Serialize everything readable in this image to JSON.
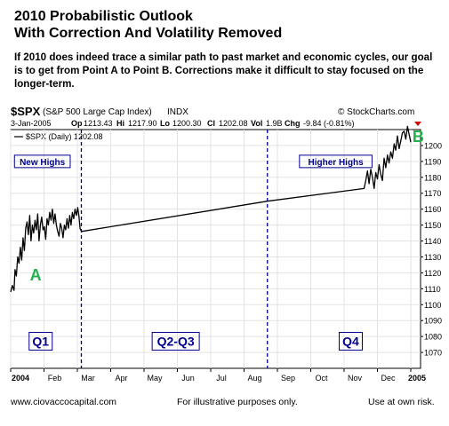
{
  "header": {
    "title_line1": "2010 Probabilistic Outlook",
    "title_line2": "With Correction And Volatility Removed",
    "subtitle": "If 2010 does indeed trace a similar path to past market and economic cycles, our goal is to get from Point A to Point B.   Corrections make it difficult to stay focused on the longer-term."
  },
  "chart_header": {
    "symbol": "$SPX",
    "name": "(S&P 500 Large Cap Index)",
    "exchange": "INDX",
    "credit": "© StockCharts.com",
    "date": "3-Jan-2005",
    "op_label": "Op",
    "op": "1213.43",
    "hi_label": "Hi",
    "hi": "1217.90",
    "lo_label": "Lo",
    "lo": "1200.30",
    "cl_label": "Cl",
    "cl": "1202.08",
    "vol_label": "Vol",
    "vol": "1.9B",
    "chg_label": "Chg",
    "chg": "-9.84 (-0.81%)",
    "legend": "$SPX (Daily) 1202.08"
  },
  "footer": {
    "left": "www.ciovaccocapital.com",
    "center": "For illustrative purposes only.",
    "right": "Use at own risk."
  },
  "colors": {
    "label_blue": "#00008B",
    "point_green": "#22B14C",
    "divider_blue": "#00008B",
    "change_red": "#CC0000",
    "price_line": "#000000"
  },
  "chart_data": {
    "type": "line",
    "title": "$SPX (S&P 500 Large Cap Index) INDX",
    "ylim": [
      1060,
      1210
    ],
    "yticks": [
      1070,
      1080,
      1090,
      1100,
      1110,
      1120,
      1130,
      1140,
      1150,
      1160,
      1170,
      1180,
      1190,
      1200
    ],
    "x_ticks": [
      {
        "label": "2004",
        "pos": 0.0,
        "bold": true
      },
      {
        "label": "Feb",
        "pos": 1.0
      },
      {
        "label": "Mar",
        "pos": 2.0
      },
      {
        "label": "Apr",
        "pos": 3.0
      },
      {
        "label": "May",
        "pos": 4.0
      },
      {
        "label": "Jun",
        "pos": 5.0
      },
      {
        "label": "Jul",
        "pos": 6.0
      },
      {
        "label": "Aug",
        "pos": 7.0
      },
      {
        "label": "Sep",
        "pos": 8.0
      },
      {
        "label": "Oct",
        "pos": 9.0
      },
      {
        "label": "Nov",
        "pos": 10.0
      },
      {
        "label": "Dec",
        "pos": 11.0
      },
      {
        "label": "2005",
        "pos": 12.0,
        "bold": true
      }
    ],
    "xlim": [
      0,
      12.0
    ],
    "series": [
      {
        "x": [
          0.0,
          0.05,
          0.1,
          0.13,
          0.17,
          0.21,
          0.25,
          0.29,
          0.33,
          0.37,
          0.41,
          0.45,
          0.49,
          0.53,
          0.57,
          0.61,
          0.65,
          0.69,
          0.73,
          0.77,
          0.81,
          0.85,
          0.89,
          0.93,
          0.97,
          1.01,
          1.05,
          1.09,
          1.13,
          1.17,
          1.21,
          1.25,
          1.29,
          1.33,
          1.37,
          1.41,
          1.45,
          1.49,
          1.53,
          1.57,
          1.61,
          1.65,
          1.69,
          1.73,
          1.77,
          1.81,
          1.85,
          1.89,
          1.93,
          1.97,
          2.01,
          2.05,
          2.08,
          2.12,
          7.7,
          10.6,
          10.65,
          10.7,
          10.75,
          10.8,
          10.85,
          10.9,
          10.95,
          11.0,
          11.05,
          11.1,
          11.15,
          11.2,
          11.25,
          11.3,
          11.35,
          11.4,
          11.45,
          11.5,
          11.55,
          11.6,
          11.65,
          11.7,
          11.75,
          11.8,
          11.85,
          11.9,
          11.95,
          12.0
        ],
        "y": [
          1108,
          1112,
          1109,
          1122,
          1118,
          1130,
          1126,
          1136,
          1128,
          1142,
          1134,
          1148,
          1152,
          1144,
          1156,
          1140,
          1150,
          1145,
          1153,
          1147,
          1157,
          1140,
          1150,
          1155,
          1147,
          1149,
          1141,
          1154,
          1150,
          1158,
          1153,
          1160,
          1151,
          1157,
          1150,
          1146,
          1143,
          1151,
          1148,
          1142,
          1150,
          1147,
          1154,
          1148,
          1156,
          1150,
          1158,
          1154,
          1160,
          1156,
          1161,
          1155,
          1148,
          1146,
          1165,
          1173,
          1178,
          1184,
          1176,
          1185,
          1180,
          1173,
          1183,
          1179,
          1188,
          1182,
          1178,
          1192,
          1186,
          1194,
          1189,
          1196,
          1192,
          1201,
          1197,
          1206,
          1198,
          1203,
          1208,
          1209,
          1204,
          1212,
          1207,
          1202
        ]
      }
    ],
    "dividers": [
      2.12,
      7.7
    ],
    "labels": {
      "new_highs": "New Highs",
      "higher_highs": "Higher Highs",
      "point_a": "A",
      "point_b": "B",
      "q1": "Q1",
      "q2_q3": "Q2-Q3",
      "q4": "Q4"
    },
    "label_positions": {
      "new_highs": {
        "x": 0.95,
        "y": 1190
      },
      "higher_highs": {
        "x": 9.75,
        "y": 1190
      },
      "point_a": {
        "x": 0.75,
        "y": 1118
      },
      "point_b": {
        "x": 12.05,
        "y": 1205
      },
      "q1": {
        "x": 0.9,
        "y": 1077
      },
      "q2_q3": {
        "x": 4.95,
        "y": 1077
      },
      "q4": {
        "x": 10.2,
        "y": 1077
      }
    }
  }
}
